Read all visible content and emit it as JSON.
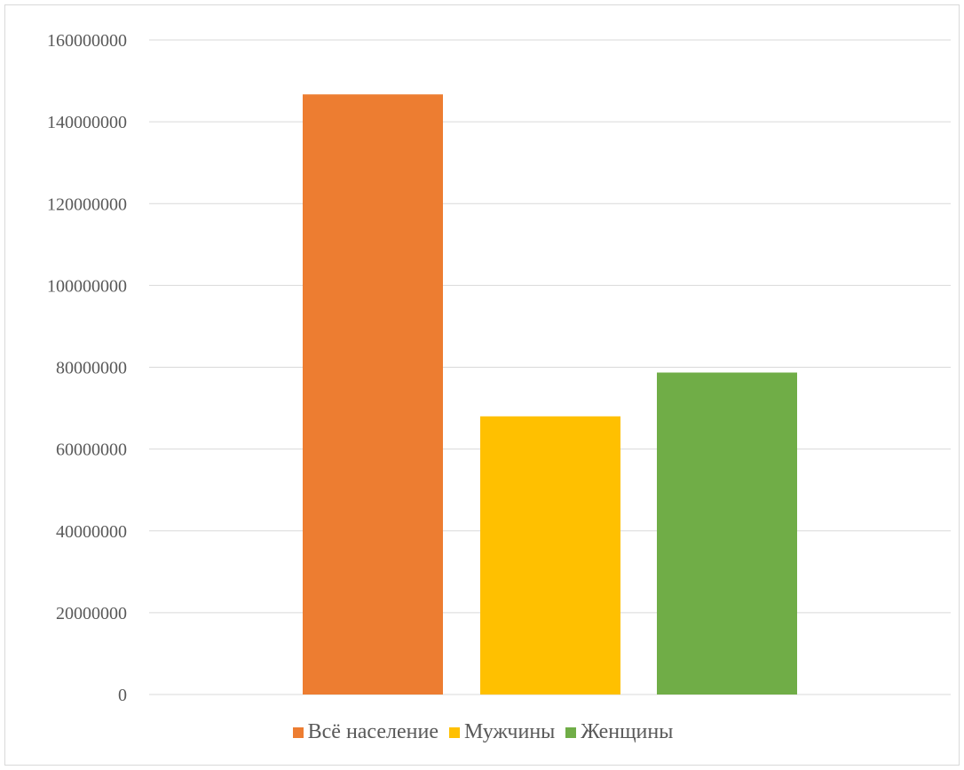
{
  "chart_data": {
    "type": "bar",
    "categories": [
      "Всё население",
      "Мужчины",
      "Женщины"
    ],
    "values": [
      146700000,
      68000000,
      78700000
    ],
    "colors": [
      "#ed7d31",
      "#ffc000",
      "#70ad47"
    ],
    "ylim": [
      0,
      160000000
    ],
    "yticks": [
      "0",
      "20000000",
      "40000000",
      "60000000",
      "80000000",
      "100000000",
      "120000000",
      "140000000",
      "160000000"
    ],
    "title": "",
    "xlabel": "",
    "ylabel": "",
    "grid": true,
    "legend_position": "bottom"
  }
}
